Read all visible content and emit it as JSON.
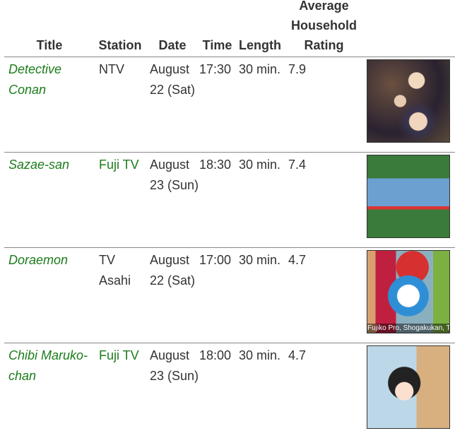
{
  "headers": {
    "title": "Title",
    "station": "Station",
    "date": "Date",
    "time": "Time",
    "length": "Length",
    "rating": "Average Household Rating"
  },
  "rows": [
    {
      "title": "Detective Conan",
      "station": "NTV",
      "station_link": false,
      "date": "August 22 (Sat)",
      "time": "17:30",
      "length": "30 min.",
      "rating": "7.9",
      "image": "detective-conan-thumbnail"
    },
    {
      "title": "Sazae-san",
      "station": "Fuji TV",
      "station_link": true,
      "date": "August 23 (Sun)",
      "time": "18:30",
      "length": "30 min.",
      "rating": "7.4",
      "image": "sazae-san-thumbnail"
    },
    {
      "title": "Doraemon",
      "station": "TV Asahi",
      "station_link": false,
      "date": "August 22 (Sat)",
      "time": "17:00",
      "length": "30 min.",
      "rating": "4.7",
      "image": "doraemon-thumbnail",
      "image_caption": "Fujiko Pro, Shogakukan, TV A"
    },
    {
      "title": "Chibi Maruko-chan",
      "station": "Fuji TV",
      "station_link": true,
      "date": "August 23 (Sun)",
      "time": "18:00",
      "length": "30 min.",
      "rating": "4.7",
      "image": "chibi-maruko-chan-thumbnail"
    }
  ],
  "colors": {
    "link": "#1b7c1b",
    "text": "#333333",
    "rule": "#888888"
  }
}
